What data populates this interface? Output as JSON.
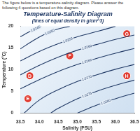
{
  "header": "The figure below is a temperature-salinity diagram. Please answer the following 4 questions based on this diagram.",
  "chart_data": {
    "type": "line",
    "title": "Temperature-Salinity Diagram",
    "subtitle": "(lines of equal density in g/cm^3)",
    "x_label": "Salinity (PSU)",
    "y_label": "Temperature (°C)",
    "xlim": [
      33.5,
      36.5
    ],
    "xticks": [
      33.5,
      {
        "value": 34,
        "label": "34.0"
      },
      34.5,
      {
        "value": 35,
        "label": "35.0"
      },
      35.5,
      {
        "value": 36,
        "label": "36.0"
      },
      36.5
    ],
    "ylim": [
      0,
      20
    ],
    "yticks": [
      0,
      5,
      10,
      15,
      20
    ],
    "grid": false,
    "legend": false,
    "series": [
      {
        "name": "1.0245",
        "color": "#1f3864",
        "line_style": "solid",
        "x": [
          33.5,
          33.75,
          34.05
        ],
        "values": [
          17.6,
          18.8,
          20
        ]
      },
      {
        "name": "1.0250",
        "color": "#1f3864",
        "line_style": "solid",
        "x": [
          33.5,
          33.8,
          34.1,
          34.45,
          34.8
        ],
        "values": [
          14.8,
          16.5,
          18,
          19.3,
          20
        ]
      },
      {
        "name": "1.0255",
        "color": "#1f3864",
        "line_style": "solid",
        "x": [
          33.5,
          34.0,
          34.5,
          35.0,
          35.6,
          36.0
        ],
        "values": [
          12,
          14.2,
          16,
          17.6,
          19,
          20
        ]
      },
      {
        "name": "1.0260",
        "color": "#1f3864",
        "line_style": "solid",
        "x": [
          33.5,
          34.0,
          34.5,
          35.0,
          35.5,
          36.0,
          36.5
        ],
        "values": [
          8.8,
          11,
          12.9,
          14.5,
          15.8,
          17,
          18
        ]
      },
      {
        "name": "1.0265",
        "color": "#1f3864",
        "line_style": "solid",
        "x": [
          33.5,
          34.0,
          34.5,
          35.0,
          35.5,
          36.0,
          36.5
        ],
        "values": [
          5.6,
          7.7,
          9.6,
          11.2,
          12.6,
          13.8,
          14.9
        ]
      },
      {
        "name": "1.0270",
        "color": "#1f3864",
        "line_style": "solid",
        "x": [
          33.6,
          34.0,
          34.5,
          35.0,
          35.5,
          36.0,
          36.5
        ],
        "values": [
          0,
          3,
          5.4,
          7.3,
          8.8,
          10.1,
          11.2
        ]
      },
      {
        "name": "1.0275",
        "color": "#1f3864",
        "line_style": "solid",
        "x": [
          34.3,
          34.5,
          35.0,
          35.5,
          36.0,
          36.5
        ],
        "values": [
          0,
          1.1,
          3.3,
          5,
          6.4,
          7.6
        ]
      },
      {
        "name": "1.0280",
        "color": "#1f3864",
        "line_style": "solid",
        "x": [
          35.0,
          35.5,
          36.0,
          36.5
        ],
        "values": [
          0,
          1.8,
          3.3,
          4.6
        ]
      },
      {
        "name": "G",
        "type": "scatter",
        "marker": "circle",
        "color": "#e03a2f",
        "x": [
          36.3
        ],
        "values": [
          18.3
        ]
      },
      {
        "name": "F",
        "type": "scatter",
        "marker": "circle",
        "color": "#e03a2f",
        "x": [
          34.8
        ],
        "values": [
          13.2
        ]
      },
      {
        "name": "D",
        "type": "scatter",
        "marker": "circle",
        "color": "#e03a2f",
        "x": [
          33.75
        ],
        "values": [
          8.6
        ]
      },
      {
        "name": "H",
        "type": "scatter",
        "marker": "circle",
        "color": "#e03a2f",
        "x": [
          36.3
        ],
        "values": [
          8.6
        ]
      },
      {
        "name": "E",
        "type": "scatter",
        "marker": "circle",
        "color": "#e03a2f",
        "x": [
          33.7
        ],
        "values": [
          3.3
        ]
      }
    ]
  }
}
